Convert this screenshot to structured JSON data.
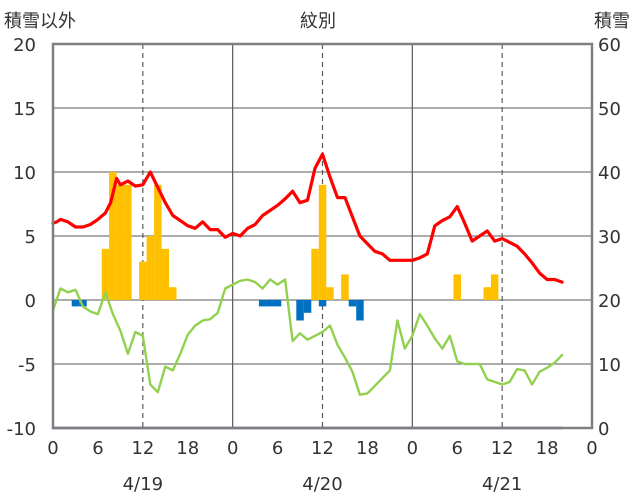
{
  "chart_data": {
    "type": "line",
    "title": "紋別",
    "left_axis_label": "積雪以外",
    "right_axis_label": "積雪",
    "left_ylim": [
      -10,
      20
    ],
    "left_yticks": [
      "20",
      "15",
      "10",
      "5",
      "0",
      "-5",
      "-10"
    ],
    "right_ylim": [
      0,
      60
    ],
    "right_yticks": [
      "60",
      "50",
      "40",
      "30",
      "20",
      "10",
      "0"
    ],
    "xlim": [
      0,
      72
    ],
    "x_tick_labels": [
      "0",
      "6",
      "12",
      "18",
      "0",
      "6",
      "12",
      "18",
      "0",
      "6",
      "12",
      "18",
      "0"
    ],
    "date_labels": [
      "4/19",
      "4/20",
      "4/21"
    ],
    "grid": true,
    "colors": {
      "temperature": "#ff0000",
      "green_line": "#92d050",
      "orange_bars": "#ffc000",
      "blue_bars": "#0070c0",
      "purple_line": "#7030a0",
      "frame": "#7f7f7f",
      "grid": "#595959"
    },
    "series": [
      {
        "kind": "line",
        "color_key": "temperature",
        "width": 3.2,
        "points": [
          [
            0,
            6.0
          ],
          [
            0.5,
            6.1
          ],
          [
            1,
            6.3
          ],
          [
            2,
            6.1
          ],
          [
            3,
            5.7
          ],
          [
            4,
            5.7
          ],
          [
            5,
            5.9
          ],
          [
            6,
            6.3
          ],
          [
            7,
            6.8
          ],
          [
            7.7,
            7.6
          ],
          [
            8.5,
            9.5
          ],
          [
            9,
            9.0
          ],
          [
            10,
            9.3
          ],
          [
            11,
            8.9
          ],
          [
            12,
            9.0
          ],
          [
            13,
            10.0
          ],
          [
            14,
            8.8
          ],
          [
            15,
            7.6
          ],
          [
            16,
            6.6
          ],
          [
            17,
            6.2
          ],
          [
            18,
            5.8
          ],
          [
            19,
            5.6
          ],
          [
            20,
            6.1
          ],
          [
            21,
            5.5
          ],
          [
            22,
            5.5
          ],
          [
            23,
            4.9
          ],
          [
            24,
            5.2
          ],
          [
            25,
            5.0
          ],
          [
            26,
            5.6
          ],
          [
            27,
            5.9
          ],
          [
            28,
            6.6
          ],
          [
            29,
            7.0
          ],
          [
            30,
            7.4
          ],
          [
            31,
            7.9
          ],
          [
            32,
            8.5
          ],
          [
            33,
            7.6
          ],
          [
            34,
            7.8
          ],
          [
            35,
            10.3
          ],
          [
            36,
            11.4
          ],
          [
            37,
            9.6
          ],
          [
            38,
            8.0
          ],
          [
            39,
            8.0
          ],
          [
            40,
            6.5
          ],
          [
            41,
            5.0
          ],
          [
            42,
            4.4
          ],
          [
            43,
            3.8
          ],
          [
            44,
            3.6
          ],
          [
            45,
            3.1
          ],
          [
            46,
            3.1
          ],
          [
            47,
            3.1
          ],
          [
            48,
            3.1
          ],
          [
            49,
            3.3
          ],
          [
            50,
            3.6
          ],
          [
            51,
            5.8
          ],
          [
            52,
            6.2
          ],
          [
            53,
            6.5
          ],
          [
            54,
            7.3
          ],
          [
            55,
            6.0
          ],
          [
            56,
            4.6
          ],
          [
            57,
            5.0
          ],
          [
            58,
            5.4
          ],
          [
            59,
            4.6
          ],
          [
            60,
            4.8
          ],
          [
            61,
            4.5
          ],
          [
            62,
            4.2
          ],
          [
            63,
            3.6
          ],
          [
            64,
            2.9
          ],
          [
            65,
            2.1
          ],
          [
            66,
            1.6
          ],
          [
            67,
            1.6
          ],
          [
            68,
            1.4
          ]
        ]
      },
      {
        "kind": "line",
        "color_key": "green_line",
        "width": 2.4,
        "points": [
          [
            0,
            -0.8
          ],
          [
            1,
            0.9
          ],
          [
            2,
            0.6
          ],
          [
            3,
            0.8
          ],
          [
            4,
            -0.5
          ],
          [
            5,
            -0.9
          ],
          [
            6,
            -1.1
          ],
          [
            7,
            0.6
          ],
          [
            8,
            -1.1
          ],
          [
            9,
            -2.4
          ],
          [
            10,
            -4.2
          ],
          [
            11,
            -2.5
          ],
          [
            12,
            -2.8
          ],
          [
            13,
            -6.6
          ],
          [
            14,
            -7.2
          ],
          [
            15,
            -5.2
          ],
          [
            16,
            -5.5
          ],
          [
            17,
            -4.2
          ],
          [
            18,
            -2.7
          ],
          [
            19,
            -2.0
          ],
          [
            20,
            -1.6
          ],
          [
            21,
            -1.5
          ],
          [
            22,
            -1.0
          ],
          [
            23,
            0.9
          ],
          [
            24,
            1.2
          ],
          [
            25,
            1.5
          ],
          [
            26,
            1.6
          ],
          [
            27,
            1.4
          ],
          [
            28,
            0.9
          ],
          [
            29,
            1.6
          ],
          [
            30,
            1.2
          ],
          [
            31,
            1.6
          ],
          [
            32,
            -3.2
          ],
          [
            33,
            -2.6
          ],
          [
            34,
            -3.1
          ],
          [
            35,
            -2.8
          ],
          [
            36,
            -2.5
          ],
          [
            37,
            -2.0
          ],
          [
            38,
            -3.5
          ],
          [
            39,
            -4.5
          ],
          [
            40,
            -5.6
          ],
          [
            41,
            -7.4
          ],
          [
            42,
            -7.3
          ],
          [
            43,
            -6.7
          ],
          [
            44,
            -6.1
          ],
          [
            45,
            -5.5
          ],
          [
            46,
            -1.6
          ],
          [
            47,
            -3.8
          ],
          [
            48,
            -2.8
          ],
          [
            49,
            -1.1
          ],
          [
            50,
            -2.0
          ],
          [
            51,
            -3.0
          ],
          [
            52,
            -3.8
          ],
          [
            53,
            -2.8
          ],
          [
            54,
            -4.8
          ],
          [
            55,
            -5.0
          ],
          [
            56,
            -5.0
          ],
          [
            57,
            -5.0
          ],
          [
            58,
            -6.2
          ],
          [
            59,
            -6.4
          ],
          [
            60,
            -6.6
          ],
          [
            61,
            -6.4
          ],
          [
            62,
            -5.4
          ],
          [
            63,
            -5.5
          ],
          [
            64,
            -6.6
          ],
          [
            65,
            -5.6
          ],
          [
            66,
            -5.3
          ],
          [
            67,
            -4.9
          ],
          [
            68,
            -4.3
          ]
        ]
      },
      {
        "kind": "line",
        "color_key": "purple_line",
        "width": 2.4,
        "points": [
          [
            0,
            -10
          ],
          [
            68,
            -10
          ]
        ]
      },
      {
        "kind": "bar",
        "color_key": "orange_bars",
        "bars": [
          [
            7,
            4
          ],
          [
            8,
            10
          ],
          [
            9,
            9
          ],
          [
            10,
            9
          ],
          [
            12,
            3
          ],
          [
            13,
            5
          ],
          [
            14,
            9
          ],
          [
            15,
            4
          ],
          [
            16,
            1
          ],
          [
            35,
            4
          ],
          [
            36,
            9
          ],
          [
            37,
            1
          ],
          [
            39,
            2
          ],
          [
            54,
            2
          ],
          [
            58,
            1
          ],
          [
            59,
            2
          ]
        ]
      },
      {
        "kind": "bar",
        "color_key": "blue_bars",
        "bars": [
          [
            3,
            -0.5
          ],
          [
            4,
            -0.5
          ],
          [
            28,
            -0.5
          ],
          [
            29,
            -0.5
          ],
          [
            30,
            -0.5
          ],
          [
            33,
            -1.6
          ],
          [
            34,
            -1.0
          ],
          [
            36,
            -0.5
          ],
          [
            40,
            -0.5
          ],
          [
            41,
            -1.6
          ]
        ]
      }
    ]
  }
}
